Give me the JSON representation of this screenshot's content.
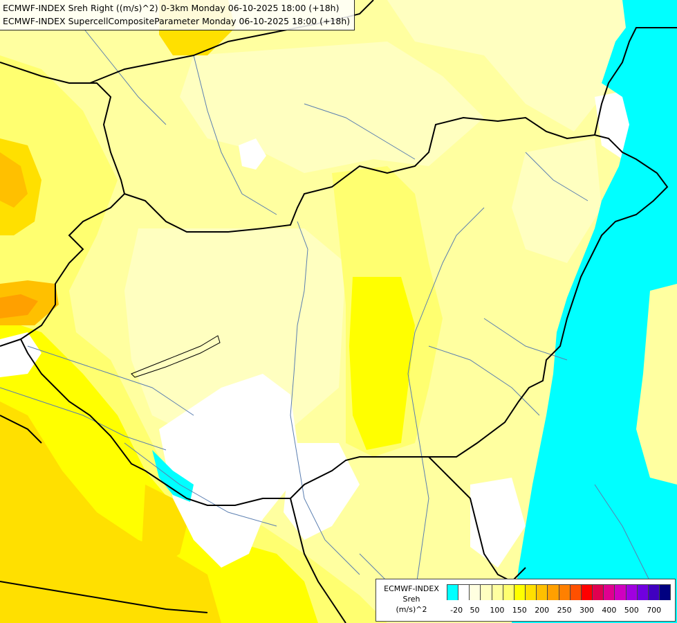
{
  "titles": {
    "line1": "ECMWF-INDEX Sreh Right ((m/s)^2) 0-3km Monday 06-10-2025 18:00 (+18h)",
    "line2": "ECMWF-INDEX SupercellCompositeParameter Monday 06-10-2025 18:00 (+18h)"
  },
  "legend": {
    "title_line1": "ECMWF-INDEX",
    "title_line2": "Sreh",
    "title_line3": "(m/s)^2",
    "colors": [
      "#00ffff",
      "#ffffff",
      "#ffffe0",
      "#ffffc0",
      "#ffffa0",
      "#ffff70",
      "#ffff00",
      "#ffe000",
      "#ffc000",
      "#ffa000",
      "#ff8000",
      "#ff5000",
      "#ff0000",
      "#e00050",
      "#e00090",
      "#d000c0",
      "#a000e0",
      "#7000e0",
      "#4000c0",
      "#000080"
    ],
    "ticks": [
      "-20",
      "50",
      "100",
      "150",
      "200",
      "250",
      "300",
      "400",
      "500",
      "700"
    ]
  },
  "map_colors": {
    "ocean_cyan": "#00ffff",
    "very_light_yellow": "#ffffc0",
    "pale_yellow": "#ffffa0",
    "light_yellow": "#ffff70",
    "yellow": "#ffff00",
    "gold": "#ffe000",
    "orange_yellow": "#ffc000",
    "orange": "#ffa000",
    "dark_orange": "#ff8000",
    "border_color": "#000000",
    "river_color": "#5a7eb0"
  }
}
